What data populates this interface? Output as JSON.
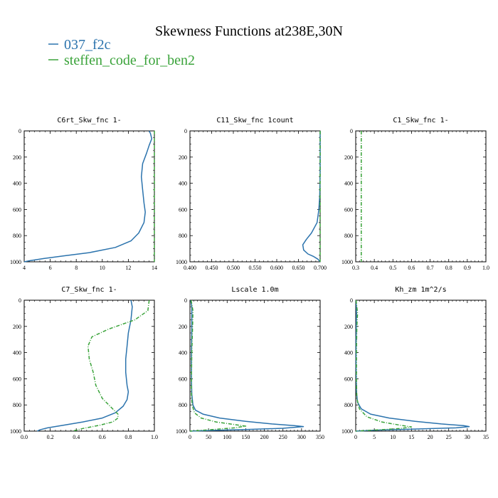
{
  "title": "Skewness Functions at238E,30N",
  "legend": [
    {
      "label": "037_f2c",
      "color": "#2b73ad"
    },
    {
      "label": "steffen_code_for_ben2",
      "color": "#3aa33a"
    }
  ],
  "chart_data": [
    {
      "type": "line",
      "title": "C6rt_Skw_fnc   1-",
      "xlim": [
        4,
        14
      ],
      "ylim": [
        1000,
        0
      ],
      "xticks": [
        "4",
        "6",
        "8",
        "10",
        "12",
        "14"
      ],
      "yticks": [
        "0",
        "200",
        "400",
        "600",
        "800",
        "1000"
      ],
      "series": [
        {
          "name": "037_f2c",
          "color": "#2b73ad",
          "dashed": false,
          "points": [
            [
              13.6,
              0
            ],
            [
              13.7,
              20
            ],
            [
              13.8,
              60
            ],
            [
              13.6,
              110
            ],
            [
              13.4,
              170
            ],
            [
              13.1,
              250
            ],
            [
              13.0,
              350
            ],
            [
              13.1,
              450
            ],
            [
              13.2,
              550
            ],
            [
              13.3,
              620
            ],
            [
              13.2,
              700
            ],
            [
              12.8,
              780
            ],
            [
              12.2,
              840
            ],
            [
              11.0,
              890
            ],
            [
              9.0,
              930
            ],
            [
              7.0,
              955
            ],
            [
              5.5,
              975
            ],
            [
              4.5,
              990
            ],
            [
              4.0,
              1000
            ]
          ]
        },
        {
          "name": "steffen_code_for_ben2",
          "color": "#3aa33a",
          "dashed": true,
          "points": [
            [
              14.0,
              0
            ],
            [
              14.0,
              1000
            ]
          ]
        }
      ]
    },
    {
      "type": "line",
      "title": "C11_Skw_fnc   1count",
      "xlim": [
        0.4,
        0.7
      ],
      "ylim": [
        1000,
        0
      ],
      "xticks": [
        "0.400",
        "0.450",
        "0.500",
        "0.550",
        "0.600",
        "0.650",
        "0.700"
      ],
      "yticks": [
        "0",
        "200",
        "400",
        "600",
        "800",
        "1000"
      ],
      "series": [
        {
          "name": "037_f2c",
          "color": "#2b73ad",
          "dashed": false,
          "points": [
            [
              0.7,
              0
            ],
            [
              0.7,
              300
            ],
            [
              0.699,
              500
            ],
            [
              0.697,
              600
            ],
            [
              0.693,
              700
            ],
            [
              0.68,
              780
            ],
            [
              0.668,
              830
            ],
            [
              0.66,
              870
            ],
            [
              0.662,
              910
            ],
            [
              0.672,
              940
            ],
            [
              0.685,
              960
            ],
            [
              0.695,
              980
            ],
            [
              0.7,
              1000
            ]
          ]
        },
        {
          "name": "steffen_code_for_ben2",
          "color": "#3aa33a",
          "dashed": true,
          "points": [
            [
              0.7,
              0
            ],
            [
              0.7,
              1000
            ]
          ]
        }
      ]
    },
    {
      "type": "line",
      "title": "C1_Skw_fnc   1-",
      "xlim": [
        0.3,
        1.0
      ],
      "ylim": [
        1000,
        0
      ],
      "xticks": [
        "0.3",
        "0.4",
        "0.5",
        "0.6",
        "0.7",
        "0.8",
        "0.9",
        "1.0"
      ],
      "yticks": [
        "0",
        "200",
        "400",
        "600",
        "800",
        "1000"
      ],
      "series": [
        {
          "name": "steffen_code_for_ben2",
          "color": "#3aa33a",
          "dashed": true,
          "points": [
            [
              0.33,
              0
            ],
            [
              0.33,
              1000
            ]
          ]
        }
      ]
    },
    {
      "type": "line",
      "title": "C7_Skw_fnc   1-",
      "xlim": [
        0.0,
        1.0
      ],
      "ylim": [
        1000,
        0
      ],
      "xticks": [
        "0.0",
        "0.2",
        "0.4",
        "0.6",
        "0.8",
        "1.0"
      ],
      "yticks": [
        "0",
        "200",
        "400",
        "600",
        "800",
        "1000"
      ],
      "series": [
        {
          "name": "037_f2c",
          "color": "#2b73ad",
          "dashed": false,
          "points": [
            [
              0.82,
              0
            ],
            [
              0.83,
              50
            ],
            [
              0.82,
              150
            ],
            [
              0.8,
              250
            ],
            [
              0.79,
              350
            ],
            [
              0.78,
              450
            ],
            [
              0.78,
              550
            ],
            [
              0.79,
              650
            ],
            [
              0.8,
              700
            ],
            [
              0.79,
              760
            ],
            [
              0.76,
              810
            ],
            [
              0.7,
              860
            ],
            [
              0.6,
              900
            ],
            [
              0.45,
              930
            ],
            [
              0.3,
              955
            ],
            [
              0.18,
              975
            ],
            [
              0.12,
              990
            ],
            [
              0.1,
              1000
            ]
          ]
        },
        {
          "name": "steffen_code_for_ben2",
          "color": "#3aa33a",
          "dashed": true,
          "points": [
            [
              0.96,
              0
            ],
            [
              0.95,
              80
            ],
            [
              0.85,
              150
            ],
            [
              0.65,
              220
            ],
            [
              0.52,
              280
            ],
            [
              0.49,
              350
            ],
            [
              0.5,
              450
            ],
            [
              0.53,
              550
            ],
            [
              0.55,
              650
            ],
            [
              0.6,
              750
            ],
            [
              0.67,
              820
            ],
            [
              0.72,
              870
            ],
            [
              0.72,
              900
            ],
            [
              0.68,
              930
            ],
            [
              0.58,
              955
            ],
            [
              0.45,
              980
            ],
            [
              0.37,
              1000
            ]
          ]
        }
      ]
    },
    {
      "type": "line",
      "title": "Lscale   1.0m",
      "xlim": [
        0,
        350
      ],
      "ylim": [
        1000,
        0
      ],
      "xticks": [
        "0",
        "50",
        "100",
        "150",
        "200",
        "250",
        "300",
        "350"
      ],
      "yticks": [
        "0",
        "200",
        "400",
        "600",
        "800",
        "1000"
      ],
      "series": [
        {
          "name": "037_f2c",
          "color": "#2b73ad",
          "dashed": false,
          "points": [
            [
              2,
              0
            ],
            [
              5,
              50
            ],
            [
              5,
              200
            ],
            [
              4,
              400
            ],
            [
              4,
              600
            ],
            [
              5,
              720
            ],
            [
              8,
              800
            ],
            [
              15,
              840
            ],
            [
              35,
              870
            ],
            [
              80,
              900
            ],
            [
              150,
              925
            ],
            [
              220,
              945
            ],
            [
              280,
              958
            ],
            [
              305,
              965
            ],
            [
              250,
              978
            ],
            [
              150,
              988
            ],
            [
              50,
              995
            ],
            [
              0,
              1000
            ]
          ]
        },
        {
          "name": "steffen_code_for_ben2",
          "color": "#3aa33a",
          "dashed": true,
          "points": [
            [
              3,
              0
            ],
            [
              8,
              80
            ],
            [
              7,
              200
            ],
            [
              5,
              400
            ],
            [
              4,
              600
            ],
            [
              4,
              720
            ],
            [
              6,
              800
            ],
            [
              12,
              860
            ],
            [
              30,
              900
            ],
            [
              70,
              930
            ],
            [
              120,
              950
            ],
            [
              150,
              962
            ],
            [
              120,
              975
            ],
            [
              50,
              990
            ],
            [
              0,
              1000
            ]
          ]
        }
      ]
    },
    {
      "type": "line",
      "title": "Kh_zm   1m^2/s",
      "xlim": [
        0,
        35
      ],
      "ylim": [
        1000,
        0
      ],
      "xticks": [
        "0",
        "5",
        "10",
        "15",
        "20",
        "25",
        "30",
        "35"
      ],
      "yticks": [
        "0",
        "200",
        "400",
        "600",
        "800",
        "1000"
      ],
      "series": [
        {
          "name": "037_f2c",
          "color": "#2b73ad",
          "dashed": false,
          "points": [
            [
              0.1,
              0
            ],
            [
              0.2,
              100
            ],
            [
              0.1,
              300
            ],
            [
              0.1,
              500
            ],
            [
              0.2,
              700
            ],
            [
              0.5,
              780
            ],
            [
              1.5,
              830
            ],
            [
              4,
              870
            ],
            [
              9,
              900
            ],
            [
              16,
              925
            ],
            [
              23,
              945
            ],
            [
              29,
              958
            ],
            [
              30.5,
              965
            ],
            [
              27,
              975
            ],
            [
              15,
              985
            ],
            [
              5,
              993
            ],
            [
              0,
              1000
            ]
          ]
        },
        {
          "name": "steffen_code_for_ben2",
          "color": "#3aa33a",
          "dashed": true,
          "points": [
            [
              0.1,
              0
            ],
            [
              0.5,
              100
            ],
            [
              0.3,
              200
            ],
            [
              0.2,
              400
            ],
            [
              0.2,
              600
            ],
            [
              0.3,
              750
            ],
            [
              1,
              830
            ],
            [
              3,
              890
            ],
            [
              7,
              930
            ],
            [
              12,
              955
            ],
            [
              15,
              968
            ],
            [
              12,
              980
            ],
            [
              5,
              992
            ],
            [
              0,
              1000
            ]
          ]
        }
      ]
    }
  ]
}
